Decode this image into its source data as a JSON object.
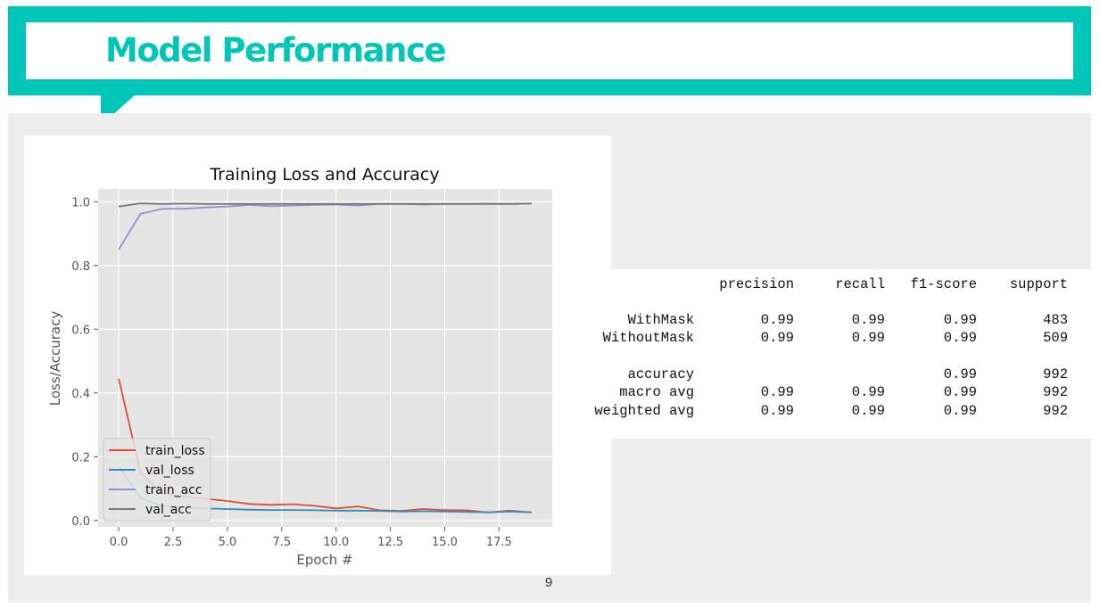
{
  "slide": {
    "title": "Model Performance",
    "page_number": "9"
  },
  "colors": {
    "accent": "#00c6ba",
    "content_bg": "#eeeeee",
    "plot_bg": "#e5e5e5",
    "train_loss": "#e24a33",
    "val_loss": "#348abd",
    "train_acc": "#988ed5",
    "val_acc": "#777777"
  },
  "chart_data": {
    "type": "line",
    "title": "Training Loss and Accuracy",
    "xlabel": "Epoch #",
    "ylabel": "Loss/Accuracy",
    "xlim": [
      -0.95,
      19.95
    ],
    "ylim": [
      -0.02,
      1.04
    ],
    "xticks": [
      0,
      2.5,
      5,
      7.5,
      10,
      12.5,
      15,
      17.5
    ],
    "xtick_labels": [
      "0.0",
      "2.5",
      "5.0",
      "7.5",
      "10.0",
      "12.5",
      "15.0",
      "17.5"
    ],
    "yticks": [
      0,
      0.2,
      0.4,
      0.6,
      0.8,
      1.0
    ],
    "ytick_labels": [
      "0.0",
      "0.2",
      "0.4",
      "0.6",
      "0.8",
      "1.0"
    ],
    "grid": true,
    "legend_position": "lower-left",
    "x": [
      0,
      1,
      2,
      3,
      4,
      5,
      6,
      7,
      8,
      9,
      10,
      11,
      12,
      13,
      14,
      15,
      16,
      17,
      18,
      19
    ],
    "series": [
      {
        "name": "train_loss",
        "color": "#e24a33",
        "values": [
          0.445,
          0.15,
          0.085,
          0.075,
          0.068,
          0.061,
          0.052,
          0.049,
          0.051,
          0.046,
          0.038,
          0.044,
          0.032,
          0.03,
          0.036,
          0.033,
          0.032,
          0.025,
          0.031,
          0.025
        ]
      },
      {
        "name": "val_loss",
        "color": "#348abd",
        "values": [
          0.17,
          0.07,
          0.045,
          0.041,
          0.038,
          0.036,
          0.034,
          0.033,
          0.033,
          0.032,
          0.031,
          0.031,
          0.03,
          0.028,
          0.029,
          0.028,
          0.027,
          0.026,
          0.028,
          0.026
        ]
      },
      {
        "name": "train_acc",
        "color": "#988ed5",
        "values": [
          0.85,
          0.962,
          0.978,
          0.978,
          0.982,
          0.985,
          0.99,
          0.986,
          0.988,
          0.99,
          0.991,
          0.988,
          0.993,
          0.993,
          0.991,
          0.993,
          0.993,
          0.994,
          0.993,
          0.994
        ]
      },
      {
        "name": "val_acc",
        "color": "#777777",
        "values": [
          0.985,
          0.995,
          0.993,
          0.994,
          0.993,
          0.993,
          0.993,
          0.993,
          0.993,
          0.993,
          0.993,
          0.993,
          0.993,
          0.993,
          0.993,
          0.993,
          0.993,
          0.993,
          0.993,
          0.994
        ]
      }
    ]
  },
  "report": {
    "headers": [
      "precision",
      "recall",
      "f1-score",
      "support"
    ],
    "rows": [
      {
        "label": "WithMask",
        "precision": "0.99",
        "recall": "0.99",
        "f1": "0.99",
        "support": "483"
      },
      {
        "label": "WithoutMask",
        "precision": "0.99",
        "recall": "0.99",
        "f1": "0.99",
        "support": "509"
      },
      {
        "label": "accuracy",
        "precision": "",
        "recall": "",
        "f1": "0.99",
        "support": "992"
      },
      {
        "label": "macro avg",
        "precision": "0.99",
        "recall": "0.99",
        "f1": "0.99",
        "support": "992"
      },
      {
        "label": "weighted avg",
        "precision": "0.99",
        "recall": "0.99",
        "f1": "0.99",
        "support": "992"
      }
    ]
  }
}
